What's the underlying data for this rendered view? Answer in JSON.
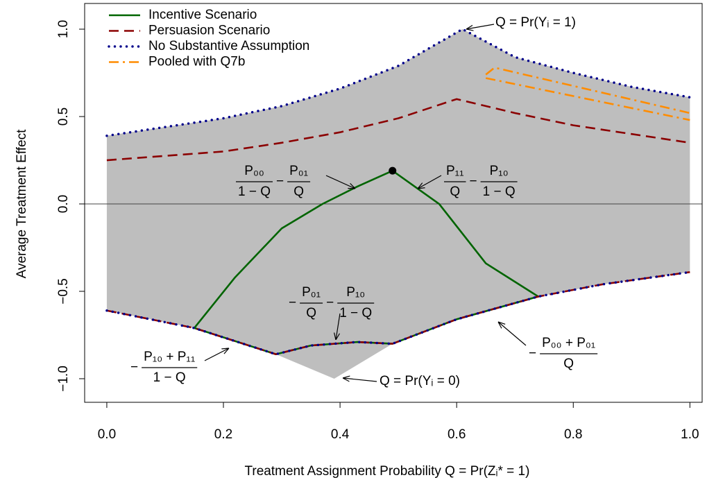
{
  "chart_data": {
    "type": "line",
    "x_label": "Treatment Assignment Probability  Q = Pr(Zᵢ* = 1)",
    "y_label": "Average Treatment Effect",
    "xlim": [
      -0.038,
      1.021
    ],
    "ylim": [
      -1.135,
      1.147
    ],
    "xticks": [
      {
        "value": 0,
        "label": "0.0"
      },
      {
        "value": 0.2,
        "label": "0.2"
      },
      {
        "value": 0.4,
        "label": "0.4"
      },
      {
        "value": 0.6,
        "label": "0.6"
      },
      {
        "value": 0.8,
        "label": "0.8"
      },
      {
        "value": 1,
        "label": "1.0"
      }
    ],
    "yticks": [
      {
        "value": -1,
        "label": "−1.0"
      },
      {
        "value": -0.5,
        "label": "−0.5"
      },
      {
        "value": 0,
        "label": "0.0"
      },
      {
        "value": 0.5,
        "label": "0.5"
      },
      {
        "value": 1,
        "label": "1.0"
      }
    ],
    "hline": 0,
    "legend": "top-left",
    "band": {
      "color": "#bebebe",
      "upper": {
        "x": [
          0,
          0.1,
          0.2,
          0.3,
          0.4,
          0.5,
          0.61,
          0.7,
          0.8,
          0.9,
          1.0
        ],
        "values": [
          0.39,
          0.44,
          0.49,
          0.56,
          0.66,
          0.79,
          1.0,
          0.84,
          0.75,
          0.67,
          0.61
        ]
      },
      "lower": {
        "x": [
          0,
          0.15,
          0.29,
          0.39,
          0.49,
          0.6,
          0.74,
          0.85,
          1.0
        ],
        "values": [
          -0.61,
          -0.71,
          -0.86,
          -1.0,
          -0.8,
          -0.66,
          -0.53,
          -0.46,
          -0.39
        ]
      }
    },
    "series": [
      {
        "name": "Incentive Scenario",
        "color": "#006400",
        "dash": "solid",
        "x": [
          0.15,
          0.29,
          0.35,
          0.43,
          0.49,
          0.6,
          0.74,
          0.65,
          0.57,
          0.49,
          0.43,
          0.37,
          0.3,
          0.22,
          0.15
        ],
        "values": [
          -0.71,
          -0.86,
          -0.81,
          -0.79,
          -0.8,
          -0.66,
          -0.53,
          -0.34,
          0.0,
          0.19,
          0.1,
          0.0,
          -0.14,
          -0.42,
          -0.71
        ]
      },
      {
        "name": "Persuasion Scenario",
        "color": "#8b0000",
        "dash": "dashed",
        "x": [
          0,
          0.2,
          0.3,
          0.4,
          0.5,
          0.6,
          0.7,
          0.8,
          0.9,
          1.0,
          0.5,
          0,
          0.15,
          0.29,
          0.35,
          0.43,
          0.49,
          0.6,
          0.74,
          0.85,
          1.0
        ],
        "values": [
          0.25,
          0.3,
          0.35,
          0.41,
          0.49,
          0.6,
          0.52,
          0.45,
          0.4,
          0.35,
          null,
          -0.61,
          -0.71,
          -0.86,
          -0.81,
          -0.79,
          -0.8,
          -0.66,
          -0.53,
          -0.46,
          -0.39
        ]
      },
      {
        "name": "No Substantive Assumption",
        "color": "#00008b",
        "dash": "dotted",
        "x": [
          0,
          0.1,
          0.2,
          0.3,
          0.4,
          0.5,
          0.61,
          0.7,
          0.8,
          0.9,
          1.0,
          0.5,
          0,
          0.15,
          0.29,
          0.35,
          0.43,
          0.49,
          0.6,
          0.74,
          0.85,
          1.0
        ],
        "values": [
          0.39,
          0.44,
          0.49,
          0.56,
          0.66,
          0.79,
          1.0,
          0.84,
          0.75,
          0.67,
          0.61,
          null,
          -0.61,
          -0.71,
          -0.86,
          -0.81,
          -0.79,
          -0.8,
          -0.66,
          -0.53,
          -0.46,
          -0.39
        ]
      },
      {
        "name": "Pooled with Q7b",
        "color": "#ff8c00",
        "dash": "dashdot",
        "x": [
          0.65,
          0.665,
          1.0,
          0.825,
          0.65,
          1.0
        ],
        "values": [
          0.74,
          0.78,
          0.52,
          null,
          0.72,
          0.48
        ]
      }
    ],
    "points": [
      {
        "x": 0.49,
        "y": 0.19
      }
    ],
    "annotations": [
      {
        "text": "Q = Pr(Yᵢ = 1)"
      },
      {
        "parts": [
          {
            "num": "P₀₀",
            "den": "1 − Q"
          },
          "−",
          {
            "num": "P₀₁",
            "den": "Q"
          }
        ]
      },
      {
        "parts": [
          {
            "num": "P₁₁",
            "den": "Q"
          },
          "−",
          {
            "num": "P₁₀",
            "den": "1 − Q"
          }
        ]
      },
      {
        "parts": [
          "−",
          {
            "num": "P₀₁",
            "den": "Q"
          },
          "−",
          {
            "num": "P₁₀",
            "den": "1 − Q"
          }
        ]
      },
      {
        "parts": [
          "−",
          {
            "num": "P₁₀ + P₁₁",
            "den": "1 − Q"
          }
        ]
      },
      {
        "parts": [
          "−",
          {
            "num": "P₀₀ + P₀₁",
            "den": "Q"
          }
        ]
      },
      {
        "text": "Q = Pr(Yᵢ = 0)"
      }
    ]
  }
}
